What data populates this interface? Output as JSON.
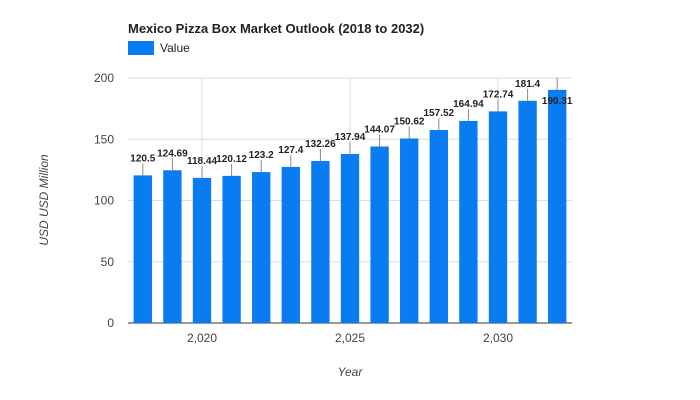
{
  "chart_data": {
    "type": "bar",
    "title": "Mexico Pizza Box Market Outlook (2018 to 2032)",
    "xlabel": "Year",
    "ylabel": "USD USD Million",
    "legend": {
      "position": "top-left",
      "entries": [
        "Value"
      ]
    },
    "series": [
      {
        "name": "Value",
        "color": "#0a7cf2",
        "x": [
          2018,
          2019,
          2020,
          2021,
          2022,
          2023,
          2024,
          2025,
          2026,
          2027,
          2028,
          2029,
          2030,
          2031,
          2032
        ],
        "values": [
          120.5,
          124.69,
          118.44,
          120.12,
          123.2,
          127.4,
          132.26,
          137.94,
          144.07,
          150.62,
          157.52,
          164.94,
          172.74,
          181.4,
          190.31
        ],
        "labels": [
          "120.5",
          "124.69",
          "118.44",
          "120.12",
          "123.2",
          "127.4",
          "132.26",
          "137.94",
          "144.07",
          "150.62",
          "157.52",
          "164.94",
          "172.74",
          "181.4",
          "190.31"
        ]
      }
    ],
    "ylim": [
      0,
      200
    ],
    "xlim": [
      2017.5,
      2032.5
    ],
    "yticks": [
      0,
      50,
      100,
      150,
      200
    ],
    "ytick_labels": [
      "0",
      "50",
      "100",
      "150",
      "200"
    ],
    "xticks": [
      2020,
      2025,
      2030
    ],
    "xtick_labels": [
      "2,020",
      "2,025",
      "2,030"
    ],
    "grid": true
  }
}
